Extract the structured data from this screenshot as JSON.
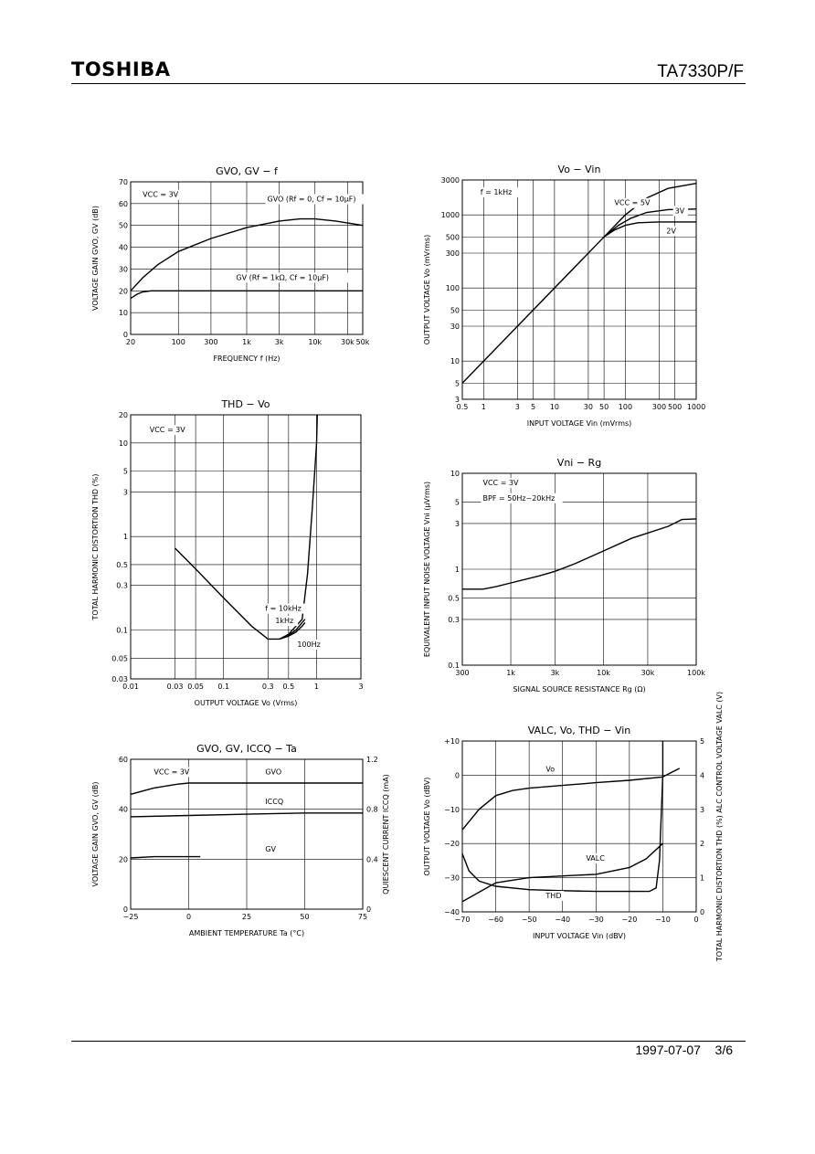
{
  "header": {
    "brand": "TOSHIBA",
    "part_number": "TA7330P/F"
  },
  "footer": {
    "date": "1997-07-07",
    "page": "3/6"
  },
  "chart_data": [
    {
      "id": "gain-freq",
      "type": "line",
      "title": "GVO, GV − f",
      "xlabel": "FREQUENCY   f   (Hz)",
      "ylabel": "VOLTAGE GAIN   GVO, GV   (dB)",
      "xscale": "log",
      "xlim": [
        20,
        50000
      ],
      "ylim": [
        0,
        70
      ],
      "xticks": [
        {
          "v": 20,
          "t": "20"
        },
        {
          "v": 100,
          "t": "100"
        },
        {
          "v": 300,
          "t": "300"
        },
        {
          "v": 1000,
          "t": "1k"
        },
        {
          "v": 3000,
          "t": "3k"
        },
        {
          "v": 10000,
          "t": "10k"
        },
        {
          "v": 30000,
          "t": "30k"
        },
        {
          "v": 50000,
          "t": "50k"
        }
      ],
      "yticks": [
        {
          "v": 0,
          "t": "0"
        },
        {
          "v": 10,
          "t": "10"
        },
        {
          "v": 20,
          "t": "20"
        },
        {
          "v": 30,
          "t": "30"
        },
        {
          "v": 40,
          "t": "40"
        },
        {
          "v": 50,
          "t": "50"
        },
        {
          "v": 60,
          "t": "60"
        },
        {
          "v": 70,
          "t": "70"
        }
      ],
      "annotations": [
        {
          "text": "VCC = 3V",
          "x": 30,
          "y": 63
        },
        {
          "text": "GVO (Rf = 0, Cf = 10μF)",
          "x": 2000,
          "y": 61
        },
        {
          "text": "GV (Rf = 1kΩ, Cf = 10μF)",
          "x": 700,
          "y": 25
        }
      ],
      "series": [
        {
          "name": "GVO",
          "x": [
            20,
            30,
            50,
            100,
            300,
            1000,
            3000,
            6000,
            10000,
            20000,
            50000
          ],
          "y": [
            20,
            26,
            32,
            38,
            44,
            49,
            52,
            53,
            53,
            52,
            50
          ]
        },
        {
          "name": "GV",
          "x": [
            20,
            25,
            30,
            40,
            50000
          ],
          "y": [
            16.5,
            18.5,
            19.5,
            20,
            20
          ]
        }
      ]
    },
    {
      "id": "vo-vin",
      "type": "line",
      "title": "Vo − Vin",
      "xlabel": "INPUT VOLTAGE   Vin   (mVrms)",
      "ylabel": "OUTPUT VOLTAGE   Vo   (mVrms)",
      "xscale": "log",
      "yscale": "log",
      "xlim": [
        0.5,
        1000
      ],
      "ylim": [
        3,
        3000
      ],
      "xticks": [
        {
          "v": 0.5,
          "t": "0.5"
        },
        {
          "v": 1,
          "t": "1"
        },
        {
          "v": 3,
          "t": "3"
        },
        {
          "v": 5,
          "t": "5"
        },
        {
          "v": 10,
          "t": "10"
        },
        {
          "v": 30,
          "t": "30"
        },
        {
          "v": 50,
          "t": "50"
        },
        {
          "v": 100,
          "t": "100"
        },
        {
          "v": 300,
          "t": "300"
        },
        {
          "v": 500,
          "t": "500"
        },
        {
          "v": 1000,
          "t": "1000"
        }
      ],
      "yticks": [
        {
          "v": 3,
          "t": "3"
        },
        {
          "v": 5,
          "t": "5"
        },
        {
          "v": 10,
          "t": "10"
        },
        {
          "v": 30,
          "t": "30"
        },
        {
          "v": 50,
          "t": "50"
        },
        {
          "v": 100,
          "t": "100"
        },
        {
          "v": 300,
          "t": "300"
        },
        {
          "v": 500,
          "t": "500"
        },
        {
          "v": 1000,
          "t": "1000"
        },
        {
          "v": 3000,
          "t": "3000"
        }
      ],
      "annotations": [
        {
          "text": "f = 1kHz",
          "x": 0.9,
          "y": 1900
        },
        {
          "text": "VCC = 5V",
          "x": 70,
          "y": 1350
        },
        {
          "text": "3V",
          "x": 500,
          "y": 1050
        },
        {
          "text": "2V",
          "x": 380,
          "y": 560
        }
      ],
      "series": [
        {
          "name": "VCC = 5V",
          "x": [
            0.5,
            50,
            100,
            200,
            400,
            1000
          ],
          "y": [
            5,
            500,
            1000,
            1700,
            2300,
            2700
          ]
        },
        {
          "name": "3V",
          "x": [
            50,
            80,
            120,
            200,
            400,
            1000
          ],
          "y": [
            500,
            720,
            900,
            1080,
            1180,
            1200
          ]
        },
        {
          "name": "2V",
          "x": [
            50,
            70,
            100,
            150,
            300,
            1000
          ],
          "y": [
            500,
            620,
            720,
            780,
            800,
            800
          ]
        }
      ]
    },
    {
      "id": "thd-vo",
      "type": "line",
      "title": "THD − Vo",
      "xlabel": "OUTPUT VOLTAGE   Vo   (Vrms)",
      "ylabel": "TOTAL HARMONIC DISTORTION   THD   (%)",
      "xscale": "log",
      "yscale": "log",
      "xlim": [
        0.01,
        3
      ],
      "ylim": [
        0.03,
        20
      ],
      "xticks": [
        {
          "v": 0.01,
          "t": "0.01"
        },
        {
          "v": 0.03,
          "t": "0.03"
        },
        {
          "v": 0.05,
          "t": "0.05"
        },
        {
          "v": 0.1,
          "t": "0.1"
        },
        {
          "v": 0.3,
          "t": "0.3"
        },
        {
          "v": 0.5,
          "t": "0.5"
        },
        {
          "v": 1,
          "t": "1"
        },
        {
          "v": 3,
          "t": "3"
        }
      ],
      "yticks": [
        {
          "v": 0.03,
          "t": "0.03"
        },
        {
          "v": 0.05,
          "t": "0.05"
        },
        {
          "v": 0.1,
          "t": "0.1"
        },
        {
          "v": 0.3,
          "t": "0.3"
        },
        {
          "v": 0.5,
          "t": "0.5"
        },
        {
          "v": 1,
          "t": "1"
        },
        {
          "v": 3,
          "t": "3"
        },
        {
          "v": 5,
          "t": "5"
        },
        {
          "v": 10,
          "t": "10"
        },
        {
          "v": 20,
          "t": "20"
        }
      ],
      "annotations": [
        {
          "text": "VCC = 3V",
          "x": 0.016,
          "y": 13
        },
        {
          "text": "f = 10kHz",
          "x": 0.28,
          "y": 0.16
        },
        {
          "text": "1kHz",
          "x": 0.36,
          "y": 0.118
        },
        {
          "text": "100Hz",
          "x": 0.62,
          "y": 0.066
        }
      ],
      "series": [
        {
          "name": "f = 10kHz",
          "x": [
            0.03,
            0.05,
            0.1,
            0.2,
            0.3,
            0.4,
            0.5,
            0.6,
            0.7,
            0.8,
            0.9,
            1,
            1.02
          ],
          "y": [
            0.75,
            0.45,
            0.22,
            0.11,
            0.08,
            0.08,
            0.09,
            0.11,
            0.13,
            0.4,
            2,
            10,
            20
          ]
        },
        {
          "name": "1kHz",
          "x": [
            0.4,
            0.5,
            0.6,
            0.7,
            0.75
          ],
          "y": [
            0.08,
            0.088,
            0.1,
            0.12,
            0.13
          ]
        },
        {
          "name": "100Hz",
          "x": [
            0.4,
            0.5,
            0.6,
            0.7,
            0.75
          ],
          "y": [
            0.08,
            0.086,
            0.095,
            0.11,
            0.12
          ]
        }
      ]
    },
    {
      "id": "vni-rg",
      "type": "line",
      "title": "Vni − Rg",
      "xlabel": "SIGNAL SOURCE RESISTANCE   Rg   (Ω)",
      "ylabel": "EQUIVALENT INPUT NOISE VOLTAGE   Vni   (μVrms)",
      "xscale": "log",
      "yscale": "log",
      "xlim": [
        300,
        100000
      ],
      "ylim": [
        0.1,
        10
      ],
      "xticks": [
        {
          "v": 300,
          "t": "300"
        },
        {
          "v": 1000,
          "t": "1k"
        },
        {
          "v": 3000,
          "t": "3k"
        },
        {
          "v": 10000,
          "t": "10k"
        },
        {
          "v": 30000,
          "t": "30k"
        },
        {
          "v": 100000,
          "t": "100k"
        }
      ],
      "yticks": [
        {
          "v": 0.1,
          "t": "0.1"
        },
        {
          "v": 0.3,
          "t": "0.3"
        },
        {
          "v": 0.5,
          "t": "0.5"
        },
        {
          "v": 1,
          "t": "1"
        },
        {
          "v": 3,
          "t": "3"
        },
        {
          "v": 5,
          "t": "5"
        },
        {
          "v": 10,
          "t": "10"
        }
      ],
      "annotations": [
        {
          "text": "VCC = 3V",
          "x": 500,
          "y": 7.5
        },
        {
          "text": "BPF = 50Hz~20kHz",
          "x": 500,
          "y": 5.2
        }
      ],
      "series": [
        {
          "name": "Vni",
          "x": [
            300,
            500,
            700,
            1000,
            2000,
            3000,
            5000,
            10000,
            20000,
            50000,
            70000,
            100000
          ],
          "y": [
            0.62,
            0.62,
            0.66,
            0.72,
            0.85,
            0.95,
            1.15,
            1.55,
            2.1,
            2.8,
            3.3,
            3.35
          ]
        }
      ]
    },
    {
      "id": "gain-ta",
      "type": "line",
      "title": "GVO, GV, ICCQ − Ta",
      "xlabel": "AMBIENT TEMPERATURE   Ta   (°C)",
      "ylabel": "VOLTAGE GAIN   GVO, GV   (dB)",
      "y2label": "QUIESCENT CURRENT   ICCQ   (mA)",
      "xlim": [
        -25,
        75
      ],
      "ylim": [
        0,
        60
      ],
      "y2lim": [
        0,
        1.2
      ],
      "xticks": [
        {
          "v": -25,
          "t": "−25"
        },
        {
          "v": 0,
          "t": "0"
        },
        {
          "v": 25,
          "t": "25"
        },
        {
          "v": 50,
          "t": "50"
        },
        {
          "v": 75,
          "t": "75"
        }
      ],
      "yticks": [
        {
          "v": 0,
          "t": "0"
        },
        {
          "v": 20,
          "t": "20"
        },
        {
          "v": 40,
          "t": "40"
        },
        {
          "v": 60,
          "t": "60"
        }
      ],
      "y2ticks": [
        {
          "v": 0,
          "t": "0"
        },
        {
          "v": 0.4,
          "t": "0.4"
        },
        {
          "v": 0.8,
          "t": "0.8"
        },
        {
          "v": 1.2,
          "t": "1.2"
        }
      ],
      "annotations": [
        {
          "text": "VCC = 3V",
          "x": -15,
          "y": 54
        },
        {
          "text": "GVO",
          "x": 33,
          "y": 54
        },
        {
          "text": "ICCQ",
          "x": 33,
          "y": 42
        },
        {
          "text": "GV",
          "x": 33,
          "y": 23
        }
      ],
      "series": [
        {
          "name": "GVO",
          "x": [
            -25,
            -15,
            -5,
            0,
            25,
            50,
            75
          ],
          "y": [
            46,
            48.5,
            50,
            50.5,
            50.5,
            50.5,
            50.5
          ]
        },
        {
          "name": "ICCQ",
          "axis": "y2",
          "x": [
            -25,
            0,
            25,
            50,
            75
          ],
          "y": [
            0.74,
            0.75,
            0.76,
            0.77,
            0.77
          ]
        },
        {
          "name": "GV",
          "x": [
            -25,
            -15,
            0,
            5
          ],
          "y": [
            20.5,
            21,
            21,
            21
          ]
        }
      ]
    },
    {
      "id": "valc-vin",
      "type": "line",
      "title": "VALC, Vo, THD − Vin",
      "xlabel": "INPUT VOLTAGE   Vin   (dBV)",
      "ylabel": "OUTPUT VOLTAGE   Vo   (dBV)",
      "y2label": "TOTAL HARMONIC DISTORTION   THD (%)   ALC CONTROL VOLTAGE   VALC (V)",
      "xlim": [
        -70,
        0
      ],
      "ylim": [
        -40,
        10
      ],
      "y2lim": [
        0,
        5
      ],
      "xticks": [
        {
          "v": -70,
          "t": "−70"
        },
        {
          "v": -60,
          "t": "−60"
        },
        {
          "v": -50,
          "t": "−50"
        },
        {
          "v": -40,
          "t": "−40"
        },
        {
          "v": -30,
          "t": "−30"
        },
        {
          "v": -20,
          "t": "−20"
        },
        {
          "v": -10,
          "t": "−10"
        },
        {
          "v": 0,
          "t": "0"
        }
      ],
      "yticks": [
        {
          "v": -40,
          "t": "−40"
        },
        {
          "v": -30,
          "t": "−30"
        },
        {
          "v": -20,
          "t": "−20"
        },
        {
          "v": -10,
          "t": "−10"
        },
        {
          "v": 0,
          "t": "0"
        },
        {
          "v": 10,
          "t": "+10"
        }
      ],
      "y2ticks": [
        {
          "v": 0,
          "t": "0"
        },
        {
          "v": 1,
          "t": "1"
        },
        {
          "v": 2,
          "t": "2"
        },
        {
          "v": 3,
          "t": "3"
        },
        {
          "v": 4,
          "t": "4"
        },
        {
          "v": 5,
          "t": "5"
        }
      ],
      "annotations": [
        {
          "text": "Vo",
          "x": -45,
          "y": 1
        },
        {
          "text": "VALC",
          "x": -33,
          "y": -25
        },
        {
          "text": "THD",
          "x": -45,
          "y": -36
        }
      ],
      "series": [
        {
          "name": "Vo",
          "x": [
            -70,
            -65,
            -60,
            -55,
            -50,
            -40,
            -30,
            -20,
            -10,
            -5
          ],
          "y": [
            -16,
            -10,
            -6,
            -4.5,
            -3.8,
            -3,
            -2.2,
            -1.5,
            -0.5,
            2
          ]
        },
        {
          "name": "VALC",
          "axis": "y2",
          "x": [
            -70,
            -60,
            -50,
            -40,
            -30,
            -20,
            -15,
            -10
          ],
          "y": [
            0.3,
            0.85,
            1,
            1.05,
            1.1,
            1.3,
            1.55,
            2
          ]
        },
        {
          "name": "THD",
          "axis": "y2",
          "x": [
            -70,
            -68,
            -65,
            -60,
            -50,
            -40,
            -30,
            -20,
            -14,
            -12,
            -11,
            -10,
            -10
          ],
          "y": [
            1.7,
            1.2,
            0.9,
            0.75,
            0.65,
            0.62,
            0.6,
            0.6,
            0.6,
            0.7,
            1.5,
            4,
            5
          ]
        }
      ]
    }
  ]
}
